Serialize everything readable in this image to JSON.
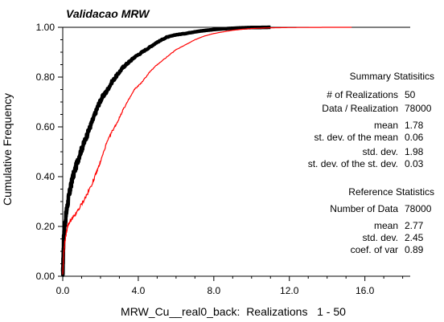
{
  "chart_data": {
    "type": "line",
    "title": "Validacao MRW",
    "xlabel": "MRW_Cu__real0_back:  Realizations   1 - 50",
    "ylabel": "Cumulative Frequency",
    "xlim": [
      0,
      18.4
    ],
    "ylim": [
      0,
      1
    ],
    "x_ticks": [
      "0.0",
      "4.0",
      "8.0",
      "12.0",
      "16.0"
    ],
    "y_ticks": [
      "0.00",
      "0.20",
      "0.40",
      "0.60",
      "0.80",
      "1.00"
    ],
    "series": [
      {
        "name": "",
        "color": "#000000",
        "role": "realizations",
        "x": [
          0.0,
          0.05,
          0.1,
          0.2,
          0.3,
          0.4,
          0.5,
          0.7,
          0.9,
          1.1,
          1.3,
          1.5,
          1.7,
          1.9,
          2.1,
          2.3,
          2.6,
          2.9,
          3.2,
          3.5,
          3.8,
          4.2,
          4.6,
          5.0,
          5.5,
          6.0,
          6.5,
          7.0,
          7.5,
          8.0,
          8.5,
          9.0,
          9.5,
          10.0,
          10.5,
          11.0
        ],
        "y": [
          0.0,
          0.16,
          0.2,
          0.26,
          0.31,
          0.35,
          0.39,
          0.44,
          0.49,
          0.53,
          0.57,
          0.61,
          0.65,
          0.69,
          0.72,
          0.74,
          0.78,
          0.81,
          0.84,
          0.86,
          0.88,
          0.9,
          0.92,
          0.94,
          0.96,
          0.97,
          0.975,
          0.982,
          0.987,
          0.991,
          0.994,
          0.996,
          0.998,
          0.999,
          0.9995,
          1.0
        ]
      },
      {
        "name": "",
        "color": "#ff0000",
        "role": "reference",
        "x": [
          0.0,
          0.05,
          0.1,
          0.2,
          0.3,
          0.5,
          0.7,
          1.0,
          1.3,
          1.6,
          1.8,
          2.0,
          2.3,
          2.6,
          2.9,
          3.2,
          3.5,
          3.8,
          4.2,
          4.6,
          5.0,
          5.5,
          6.0,
          6.5,
          7.0,
          7.5,
          8.0,
          8.5,
          9.0,
          9.5,
          10.0,
          11.0,
          12.0,
          13.0,
          14.0,
          15.3
        ],
        "y": [
          0.0,
          0.09,
          0.13,
          0.18,
          0.21,
          0.23,
          0.25,
          0.29,
          0.33,
          0.38,
          0.42,
          0.46,
          0.53,
          0.58,
          0.62,
          0.67,
          0.71,
          0.75,
          0.78,
          0.82,
          0.85,
          0.88,
          0.91,
          0.93,
          0.95,
          0.965,
          0.975,
          0.982,
          0.988,
          0.992,
          0.995,
          0.998,
          0.999,
          0.9995,
          1.0,
          1.0
        ]
      }
    ],
    "annotations": {
      "summary_title": "Summary Statisitics",
      "summary_rows": [
        {
          "label": "# of Realizations",
          "value": "50"
        },
        {
          "label": "Data / Realization",
          "value": "78000"
        },
        {
          "label": "mean",
          "value": "1.78"
        },
        {
          "label": "st. dev. of the mean",
          "value": "0.06"
        },
        {
          "label": "std. dev.",
          "value": "1.98"
        },
        {
          "label": "st. dev. of the st. dev.",
          "value": "0.03"
        }
      ],
      "reference_title": "Reference Statistics",
      "reference_rows": [
        {
          "label": "Number of Data",
          "value": "78000"
        },
        {
          "label": "mean",
          "value": "2.77"
        },
        {
          "label": "std. dev.",
          "value": "2.45"
        },
        {
          "label": "coef. of var",
          "value": "0.89"
        }
      ]
    }
  }
}
